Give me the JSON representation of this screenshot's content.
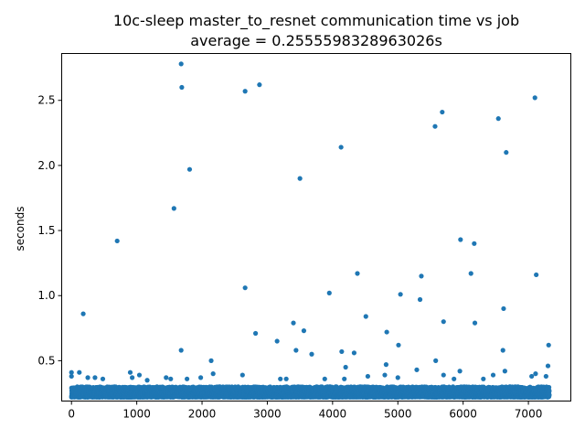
{
  "chart_data": {
    "type": "scatter",
    "title": "10c-sleep master_to_resnet communication time vs job",
    "subtitle": "average = 0.2555598328963026s",
    "xlabel": "",
    "ylabel": "seconds",
    "xlim": [
      -150,
      7650
    ],
    "ylim": [
      0.19,
      2.86
    ],
    "xticks": [
      0,
      1000,
      2000,
      3000,
      4000,
      5000,
      6000,
      7000
    ],
    "xtick_labels": [
      "0",
      "1000",
      "2000",
      "3000",
      "4000",
      "5000",
      "6000",
      "7000"
    ],
    "yticks": [
      0.5,
      1.0,
      1.5,
      2.0,
      2.5
    ],
    "ytick_labels": [
      "0.5",
      "1.0",
      "1.5",
      "2.0",
      "2.5"
    ],
    "grid": false,
    "legend": "none",
    "marker_color": "#1f77b4",
    "baseline": {
      "x_range": [
        0,
        7320
      ],
      "y_range": [
        0.22,
        0.3
      ],
      "count": 7320
    },
    "points": [
      {
        "x": 1680,
        "y": 2.78
      },
      {
        "x": 1690,
        "y": 2.6
      },
      {
        "x": 2660,
        "y": 2.57
      },
      {
        "x": 2880,
        "y": 2.62
      },
      {
        "x": 7100,
        "y": 2.52
      },
      {
        "x": 5680,
        "y": 2.41
      },
      {
        "x": 6540,
        "y": 2.36
      },
      {
        "x": 5570,
        "y": 2.3
      },
      {
        "x": 4130,
        "y": 2.14
      },
      {
        "x": 6660,
        "y": 2.1
      },
      {
        "x": 1810,
        "y": 1.97
      },
      {
        "x": 3500,
        "y": 1.9
      },
      {
        "x": 1570,
        "y": 1.67
      },
      {
        "x": 700,
        "y": 1.42
      },
      {
        "x": 5960,
        "y": 1.43
      },
      {
        "x": 6170,
        "y": 1.4
      },
      {
        "x": 4380,
        "y": 1.17
      },
      {
        "x": 6120,
        "y": 1.17
      },
      {
        "x": 7120,
        "y": 1.16
      },
      {
        "x": 5360,
        "y": 1.15
      },
      {
        "x": 2660,
        "y": 1.06
      },
      {
        "x": 3950,
        "y": 1.02
      },
      {
        "x": 5040,
        "y": 1.01
      },
      {
        "x": 5340,
        "y": 0.97
      },
      {
        "x": 6620,
        "y": 0.9
      },
      {
        "x": 180,
        "y": 0.86
      },
      {
        "x": 4510,
        "y": 0.84
      },
      {
        "x": 5700,
        "y": 0.8
      },
      {
        "x": 6180,
        "y": 0.79
      },
      {
        "x": 3400,
        "y": 0.79
      },
      {
        "x": 3560,
        "y": 0.73
      },
      {
        "x": 4830,
        "y": 0.72
      },
      {
        "x": 2820,
        "y": 0.71
      },
      {
        "x": 3150,
        "y": 0.65
      },
      {
        "x": 7310,
        "y": 0.62
      },
      {
        "x": 5010,
        "y": 0.62
      },
      {
        "x": 6610,
        "y": 0.58
      },
      {
        "x": 1680,
        "y": 0.58
      },
      {
        "x": 3440,
        "y": 0.58
      },
      {
        "x": 4140,
        "y": 0.57
      },
      {
        "x": 4330,
        "y": 0.56
      },
      {
        "x": 3680,
        "y": 0.55
      },
      {
        "x": 2140,
        "y": 0.5
      },
      {
        "x": 5580,
        "y": 0.5
      },
      {
        "x": 4820,
        "y": 0.47
      },
      {
        "x": 7300,
        "y": 0.46
      },
      {
        "x": 4200,
        "y": 0.45
      },
      {
        "x": 5290,
        "y": 0.43
      },
      {
        "x": 6640,
        "y": 0.42
      },
      {
        "x": 5950,
        "y": 0.42
      },
      {
        "x": 0,
        "y": 0.41
      },
      {
        "x": 120,
        "y": 0.41
      },
      {
        "x": 900,
        "y": 0.41
      },
      {
        "x": 2170,
        "y": 0.4
      },
      {
        "x": 7110,
        "y": 0.4
      },
      {
        "x": 7050,
        "y": 0.38
      },
      {
        "x": 1040,
        "y": 0.39
      },
      {
        "x": 2620,
        "y": 0.39
      },
      {
        "x": 4800,
        "y": 0.39
      },
      {
        "x": 6460,
        "y": 0.39
      },
      {
        "x": 0,
        "y": 0.38
      },
      {
        "x": 250,
        "y": 0.37
      },
      {
        "x": 360,
        "y": 0.37
      },
      {
        "x": 480,
        "y": 0.36
      },
      {
        "x": 930,
        "y": 0.37
      },
      {
        "x": 1160,
        "y": 0.35
      },
      {
        "x": 1450,
        "y": 0.37
      },
      {
        "x": 1520,
        "y": 0.36
      },
      {
        "x": 1770,
        "y": 0.36
      },
      {
        "x": 1980,
        "y": 0.37
      },
      {
        "x": 3200,
        "y": 0.36
      },
      {
        "x": 3290,
        "y": 0.36
      },
      {
        "x": 3880,
        "y": 0.36
      },
      {
        "x": 4180,
        "y": 0.36
      },
      {
        "x": 4540,
        "y": 0.38
      },
      {
        "x": 5000,
        "y": 0.37
      },
      {
        "x": 5700,
        "y": 0.39
      },
      {
        "x": 5860,
        "y": 0.36
      },
      {
        "x": 6310,
        "y": 0.36
      },
      {
        "x": 7270,
        "y": 0.38
      }
    ]
  }
}
